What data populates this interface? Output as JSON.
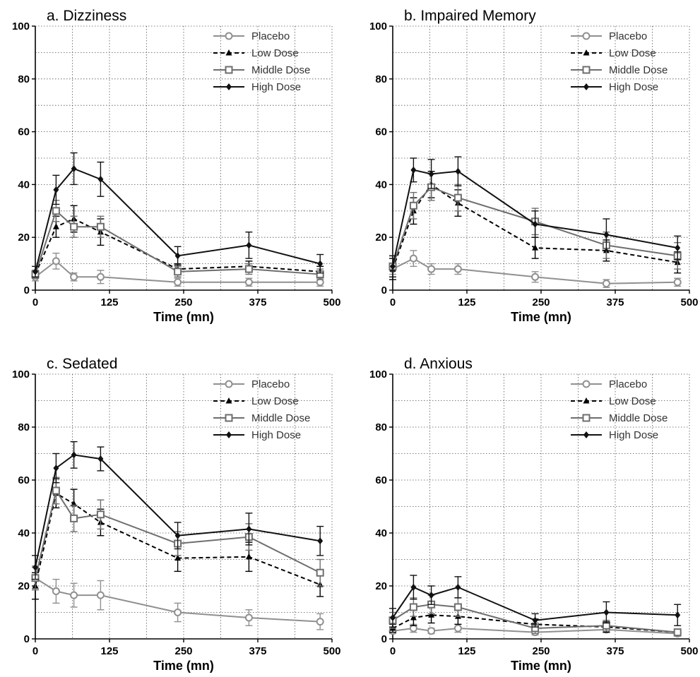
{
  "figure": {
    "legend": [
      "Placebo",
      "Low Dose",
      "Middle Dose",
      "High Dose"
    ]
  },
  "series_styles": [
    {
      "name": "Placebo",
      "color": "#909090",
      "dash": "solid",
      "marker": "circle"
    },
    {
      "name": "Low Dose",
      "color": "#000000",
      "dash": "dashed",
      "marker": "triangle"
    },
    {
      "name": "Middle Dose",
      "color": "#6e6e6e",
      "dash": "solid",
      "marker": "square"
    },
    {
      "name": "High Dose",
      "color": "#111111",
      "dash": "solid",
      "marker": "diamond"
    }
  ],
  "chart_data": [
    {
      "type": "line",
      "title": "a. Dizziness",
      "xlabel": "Time (mn)",
      "ylabel": "",
      "xlim": [
        0,
        500
      ],
      "ylim": [
        0,
        100
      ],
      "xticks": [
        "0",
        "125",
        "250",
        "375",
        "500"
      ],
      "yticks": [
        "0",
        "20",
        "40",
        "60",
        "80",
        "100"
      ],
      "grid": true,
      "legend_position": "top-right",
      "x": [
        0,
        35,
        65,
        110,
        240,
        360,
        480
      ],
      "series": [
        {
          "name": "Placebo",
          "values": [
            5,
            11,
            5,
            5,
            3,
            3,
            3
          ],
          "errors": [
            1.5,
            3,
            1.5,
            2.5,
            1.5,
            1.5,
            1.5
          ]
        },
        {
          "name": "Low Dose",
          "values": [
            6,
            24,
            27,
            22,
            8,
            9,
            7
          ],
          "errors": [
            1.5,
            4,
            5,
            5,
            2,
            2,
            2
          ]
        },
        {
          "name": "Middle Dose",
          "values": [
            6,
            30,
            24,
            24,
            7,
            8,
            6
          ],
          "errors": [
            1.5,
            4,
            4,
            4,
            2,
            2,
            2
          ]
        },
        {
          "name": "High Dose",
          "values": [
            7,
            38,
            46,
            42,
            13,
            17,
            10
          ],
          "errors": [
            2,
            5.5,
            6,
            6.5,
            3.5,
            5,
            3.5
          ]
        }
      ]
    },
    {
      "type": "line",
      "title": "b. Impaired Memory",
      "xlabel": "Time (mn)",
      "ylabel": "",
      "xlim": [
        0,
        500
      ],
      "ylim": [
        0,
        100
      ],
      "xticks": [
        "0",
        "125",
        "250",
        "375",
        "500"
      ],
      "yticks": [
        "0",
        "20",
        "40",
        "60",
        "80",
        "100"
      ],
      "grid": true,
      "legend_position": "top-right",
      "x": [
        0,
        35,
        65,
        110,
        240,
        360,
        480
      ],
      "series": [
        {
          "name": "Placebo",
          "values": [
            8,
            12,
            8,
            8,
            5,
            2.5,
            3
          ],
          "errors": [
            2,
            3,
            2,
            2,
            2,
            1.5,
            1.5
          ]
        },
        {
          "name": "Low Dose",
          "values": [
            8,
            30,
            40,
            33,
            16,
            15,
            10.5
          ],
          "errors": [
            4,
            5,
            5,
            5,
            4,
            4,
            4
          ]
        },
        {
          "name": "Middle Dose",
          "values": [
            9,
            32,
            39,
            35,
            26,
            17,
            13
          ],
          "errors": [
            4,
            5,
            5,
            5,
            5,
            5,
            5
          ]
        },
        {
          "name": "High Dose",
          "values": [
            9,
            45.5,
            44,
            45,
            25,
            21,
            16
          ],
          "errors": [
            4,
            4.5,
            5.5,
            5.5,
            5,
            6,
            4.5
          ]
        }
      ]
    },
    {
      "type": "line",
      "title": "c. Sedated",
      "xlabel": "Time (mn)",
      "ylabel": "",
      "xlim": [
        0,
        500
      ],
      "ylim": [
        0,
        100
      ],
      "xticks": [
        "0",
        "125",
        "250",
        "375",
        "500"
      ],
      "yticks": [
        "0",
        "20",
        "40",
        "60",
        "80",
        "100"
      ],
      "grid": true,
      "legend_position": "top-right",
      "x": [
        0,
        35,
        65,
        110,
        240,
        360,
        480
      ],
      "series": [
        {
          "name": "Placebo",
          "values": [
            23,
            18,
            16.5,
            16.5,
            10,
            8,
            6.5
          ],
          "errors": [
            4,
            4.5,
            4.5,
            5.5,
            3.5,
            3,
            3
          ]
        },
        {
          "name": "Low Dose",
          "values": [
            20,
            55,
            51,
            44,
            30.5,
            31,
            20.5
          ],
          "errors": [
            5,
            5.5,
            5.5,
            5,
            5,
            5.5,
            4.5
          ]
        },
        {
          "name": "Middle Dose",
          "values": [
            23,
            56,
            45.5,
            47,
            36,
            38.5,
            25
          ],
          "errors": [
            4.5,
            5,
            5,
            5.5,
            4.5,
            5,
            5
          ]
        },
        {
          "name": "High Dose",
          "values": [
            27,
            64.5,
            69.5,
            68,
            39,
            41.5,
            37
          ],
          "errors": [
            4.5,
            5.5,
            5,
            4.5,
            5,
            6,
            5.5
          ]
        }
      ]
    },
    {
      "type": "line",
      "title": "d. Anxious",
      "xlabel": "Time (mn)",
      "ylabel": "",
      "xlim": [
        0,
        500
      ],
      "ylim": [
        0,
        100
      ],
      "xticks": [
        "0",
        "125",
        "250",
        "375",
        "500"
      ],
      "yticks": [
        "0",
        "20",
        "40",
        "60",
        "80",
        "100"
      ],
      "grid": true,
      "legend_position": "top-right",
      "x": [
        0,
        35,
        65,
        110,
        240,
        360,
        480
      ],
      "series": [
        {
          "name": "Placebo",
          "values": [
            3,
            4,
            3,
            4,
            2.5,
            3.5,
            2
          ],
          "errors": [
            1,
            1.5,
            1,
            1.5,
            1,
            1,
            1
          ]
        },
        {
          "name": "Low Dose",
          "values": [
            4,
            8,
            9,
            8.5,
            5.5,
            4.5,
            2.5
          ],
          "errors": [
            1.5,
            3,
            3,
            3,
            2,
            2,
            1
          ]
        },
        {
          "name": "Middle Dose",
          "values": [
            7,
            12,
            13,
            12,
            4,
            5,
            2.5
          ],
          "errors": [
            3,
            3.5,
            3.5,
            3.5,
            2,
            2,
            1
          ]
        },
        {
          "name": "High Dose",
          "values": [
            8,
            19.5,
            16.5,
            19.5,
            7,
            10,
            9
          ],
          "errors": [
            3.5,
            4.5,
            3.5,
            4,
            2.5,
            4,
            4
          ]
        }
      ]
    }
  ]
}
